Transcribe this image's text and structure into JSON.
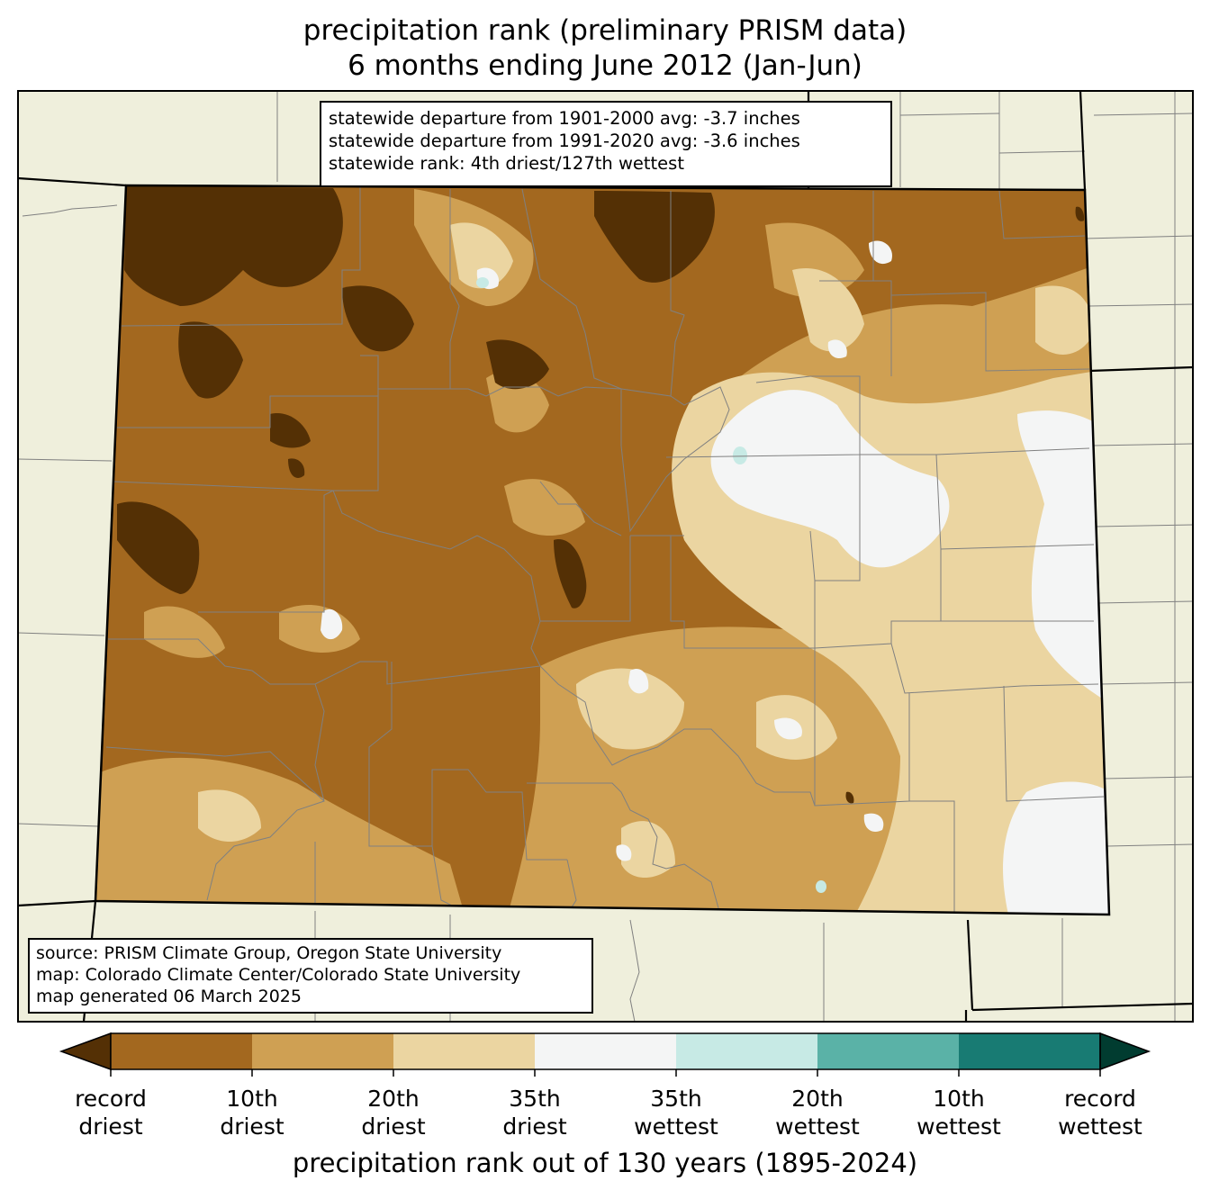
{
  "title": {
    "line1": "precipitation rank (preliminary PRISM data)",
    "line2": "6 months ending June 2012 (Jan-Jun)"
  },
  "stats": {
    "line1": "statewide departure from 1901-2000 avg: -3.7 inches",
    "line2": "statewide departure from 1991-2020 avg: -3.6 inches",
    "line3": "statewide rank: 4th driest/127th wettest"
  },
  "credits": {
    "line1": "source: PRISM Climate Group, Oregon State University",
    "line2": "map: Colorado Climate Center/Colorado State University",
    "line3": "map generated 06 March 2025"
  },
  "colorbar": {
    "title": "precipitation rank out of 130 years (1895-2024)",
    "ticks": [
      {
        "l1": "record",
        "l2": "driest"
      },
      {
        "l1": "10th",
        "l2": "driest"
      },
      {
        "l1": "20th",
        "l2": "driest"
      },
      {
        "l1": "35th",
        "l2": "driest"
      },
      {
        "l1": "35th",
        "l2": "wettest"
      },
      {
        "l1": "20th",
        "l2": "wettest"
      },
      {
        "l1": "10th",
        "l2": "wettest"
      },
      {
        "l1": "record",
        "l2": "wettest"
      }
    ],
    "colors": {
      "under": "#543005",
      "bins": [
        "#a3681f",
        "#cfa053",
        "#ebd5a1",
        "#f4f5f5",
        "#c7eae5",
        "#5ab2a7",
        "#187b73"
      ],
      "over": "#013c30"
    }
  },
  "map_colors": {
    "land": "#efefdc",
    "county_line": "#808080",
    "state_line": "#000000"
  }
}
